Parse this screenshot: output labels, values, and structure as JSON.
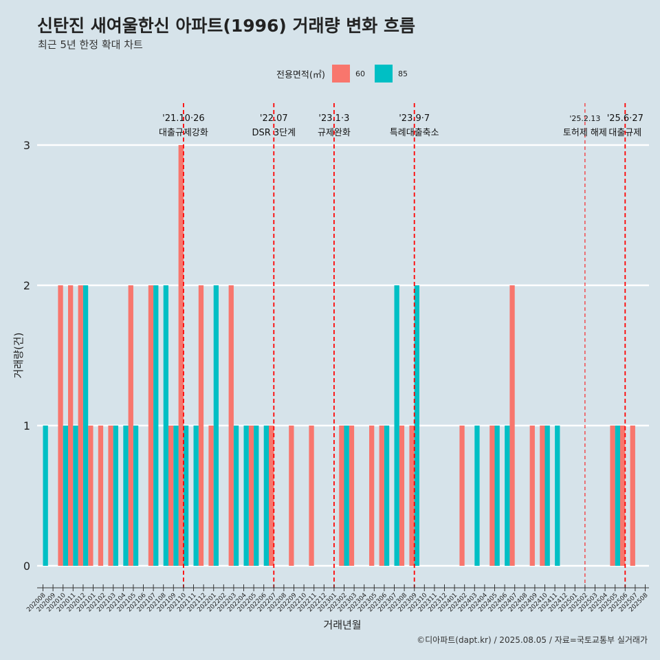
{
  "title": "신탄진 새여울한신 아파트(1996) 거래량 변화 흐름",
  "subtitle": "최근 5년 한정 확대 차트",
  "legend": {
    "title": "전용면적(㎡)",
    "items": [
      {
        "label": "60",
        "color": "#f8766d"
      },
      {
        "label": "85",
        "color": "#00bfc4"
      }
    ]
  },
  "footer": "©디아파트(dapt.kr) / 2025.08.05 / 자료=국토교통부 실거래가",
  "chart_data": {
    "type": "bar",
    "xlabel": "거래년월",
    "ylabel": "거래량(건)",
    "ylim": [
      0,
      3
    ],
    "yticks": [
      0,
      1,
      2,
      3
    ],
    "categories": [
      "202008",
      "202009",
      "202010",
      "202011",
      "202012",
      "202101",
      "202102",
      "202103",
      "202104",
      "202105",
      "202106",
      "202107",
      "202108",
      "202109",
      "202110",
      "202111",
      "202112",
      "202201",
      "202202",
      "202203",
      "202204",
      "202205",
      "202206",
      "202207",
      "202208",
      "202209",
      "202210",
      "202211",
      "202212",
      "202301",
      "202302",
      "202303",
      "202304",
      "202305",
      "202306",
      "202307",
      "202308",
      "202309",
      "202310",
      "202311",
      "202312",
      "202401",
      "202402",
      "202403",
      "202404",
      "202405",
      "202406",
      "202407",
      "202408",
      "202409",
      "202410",
      "202411",
      "202412",
      "202501",
      "202502",
      "202503",
      "202504",
      "202505",
      "202506",
      "202507",
      "202508"
    ],
    "series": [
      {
        "name": "60",
        "color": "#f8766d",
        "values": [
          0,
          0,
          2,
          2,
          2,
          1,
          1,
          1,
          0,
          2,
          0,
          2,
          0,
          1,
          3,
          0,
          2,
          1,
          0,
          2,
          0,
          1,
          0,
          1,
          0,
          1,
          0,
          1,
          0,
          0,
          1,
          1,
          0,
          1,
          1,
          0,
          1,
          1,
          0,
          0,
          0,
          0,
          1,
          0,
          0,
          1,
          0,
          2,
          0,
          1,
          1,
          0,
          0,
          0,
          0,
          0,
          0,
          1,
          1,
          1,
          0
        ]
      },
      {
        "name": "85",
        "color": "#00bfc4",
        "values": [
          1,
          0,
          1,
          1,
          2,
          0,
          0,
          1,
          1,
          1,
          0,
          2,
          2,
          1,
          1,
          1,
          0,
          2,
          0,
          1,
          1,
          1,
          1,
          0,
          0,
          0,
          0,
          0,
          0,
          0,
          1,
          0,
          0,
          0,
          1,
          2,
          0,
          2,
          0,
          0,
          0,
          0,
          0,
          1,
          0,
          1,
          1,
          0,
          0,
          0,
          1,
          1,
          0,
          0,
          0,
          0,
          0,
          1,
          0,
          0,
          0
        ]
      }
    ],
    "events": [
      {
        "month": "202110",
        "date": "'21.10·26",
        "label": "대출규제강화",
        "style": "major"
      },
      {
        "month": "202207",
        "date": "'22.07",
        "label": "DSR 3단계",
        "style": "major"
      },
      {
        "month": "202301",
        "date": "'23.1·3",
        "label": "규제완화",
        "style": "major"
      },
      {
        "month": "202309",
        "date": "'23.9·7",
        "label": "특례대출축소",
        "style": "major"
      },
      {
        "month": "202502",
        "date": "'25.2.13",
        "label": "토허제 해제",
        "style": "minor"
      },
      {
        "month": "202506",
        "date": "'25.6·27",
        "label": "대출규제",
        "style": "major"
      }
    ]
  }
}
